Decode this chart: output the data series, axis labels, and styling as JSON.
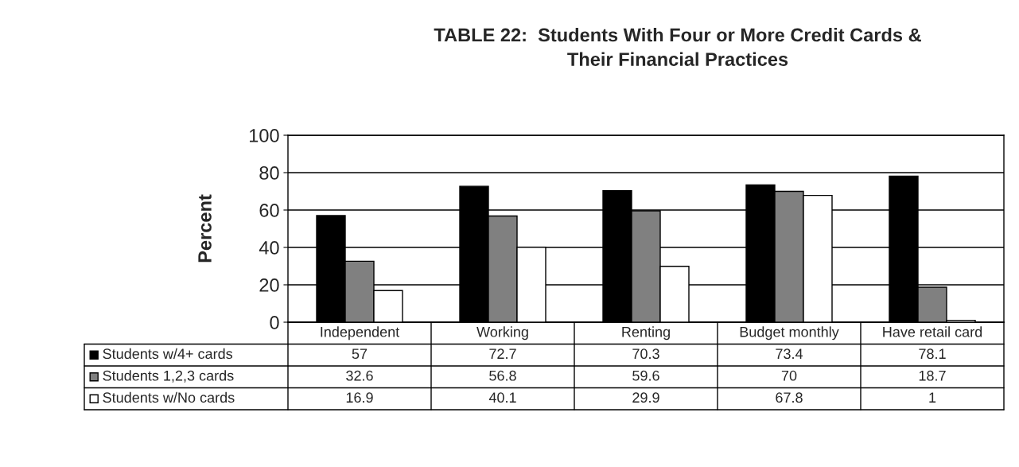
{
  "chart_data": {
    "type": "bar",
    "title": "TABLE 22:  Students With Four or More Credit Cards &\nTheir Financial Practices",
    "ylabel": "Percent",
    "categories": [
      "Independent",
      "Working",
      "Renting",
      "Budget monthly",
      "Have retail card"
    ],
    "series": [
      {
        "name": "Students w/4+ cards",
        "color": "#000000",
        "values": [
          57,
          72.7,
          70.3,
          73.4,
          78.1
        ]
      },
      {
        "name": "Students 1,2,3 cards",
        "color": "#808080",
        "values": [
          32.6,
          56.8,
          59.6,
          70,
          18.7
        ]
      },
      {
        "name": "Students w/No cards",
        "color": "#ffffff",
        "values": [
          16.9,
          40.1,
          29.9,
          67.8,
          1
        ]
      }
    ],
    "ylim": [
      0,
      100
    ],
    "yticks": [
      0,
      20,
      40,
      60,
      80,
      100
    ],
    "grid": "y",
    "data_labels": true,
    "legend": "bottom"
  }
}
